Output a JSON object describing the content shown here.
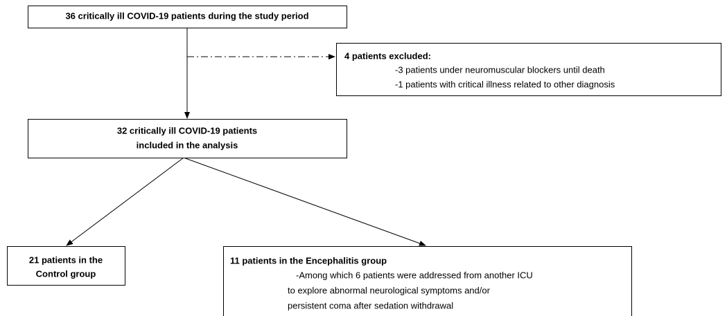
{
  "nodes": [
    {
      "lines": [
        "36 critically ill COVID-19 patients during the study period"
      ]
    },
    {
      "title": "4 patients excluded:",
      "lines": [
        "-3 patients under neuromuscular blockers until death",
        "-1 patients with critical illness related to other diagnosis"
      ]
    },
    {
      "lines": [
        "32 critically ill COVID-19 patients",
        "included in the analysis"
      ]
    },
    {
      "lines": [
        "21 patients in the",
        "Control group"
      ]
    },
    {
      "title": "11 patients in the Encephalitis group",
      "lines": [
        "-Among which 6 patients were addressed from another ICU",
        "to explore abnormal neurological symptoms and/or",
        "persistent coma after sedation withdrawal"
      ]
    }
  ]
}
